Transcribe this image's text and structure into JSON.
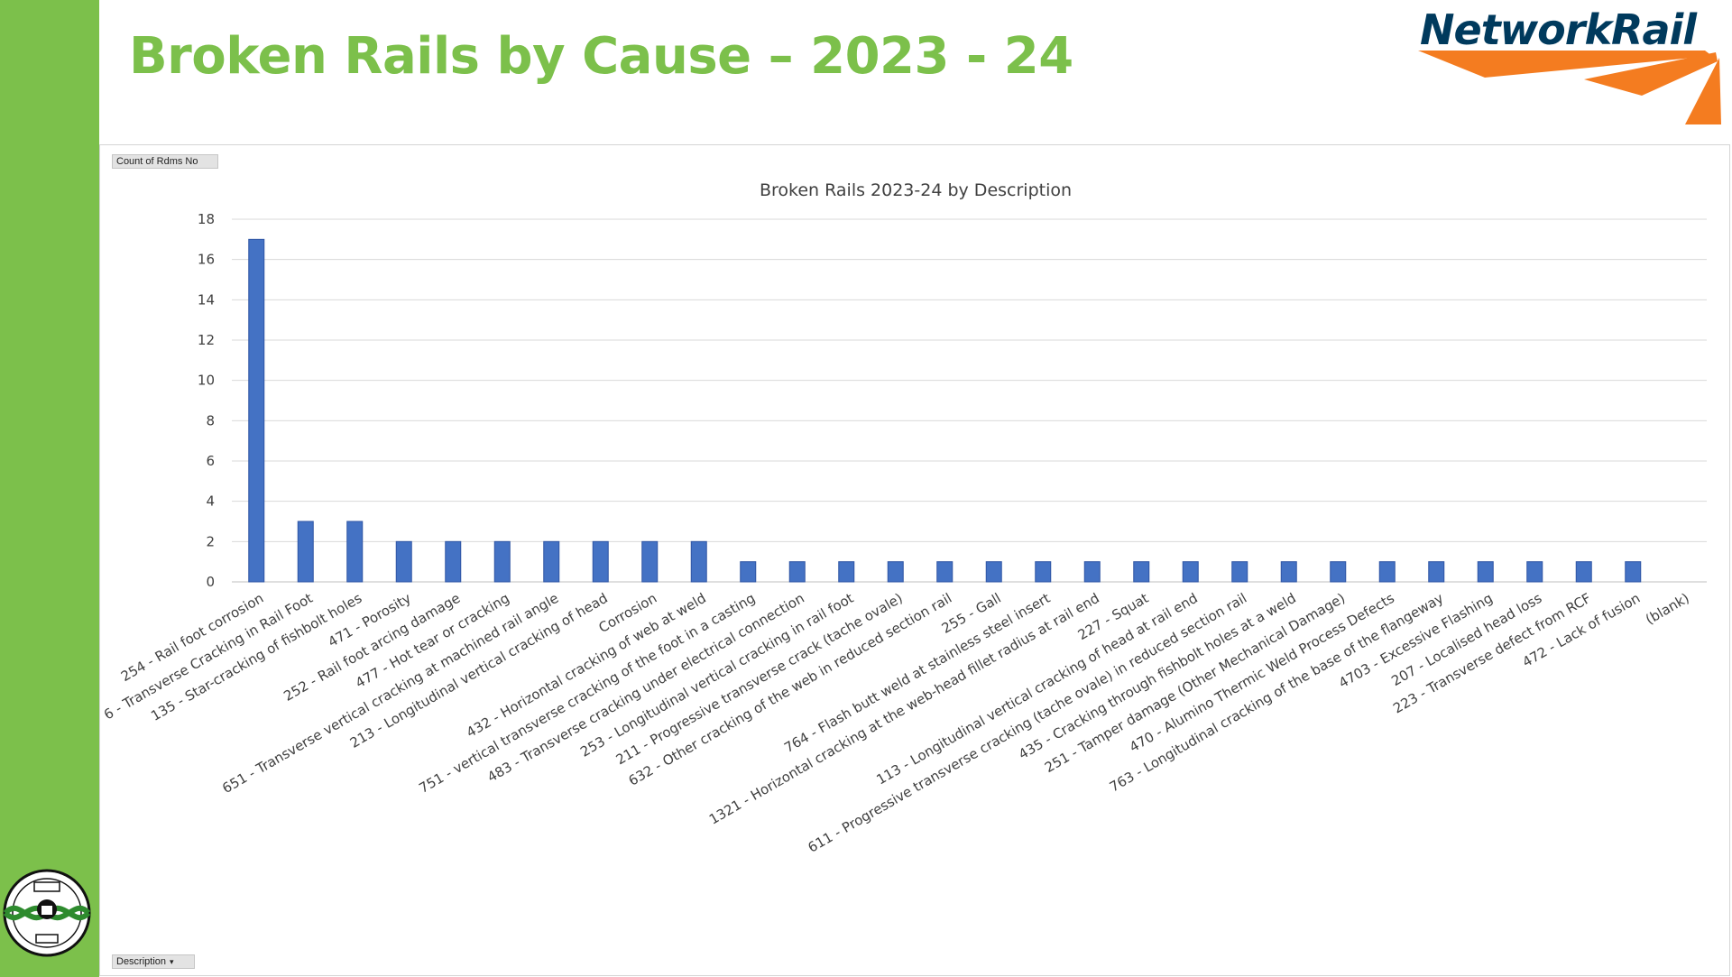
{
  "slide": {
    "title": "Broken Rails by Cause – 2023 - 24",
    "logo_text": "NetworkRail",
    "accent_color": "#7cc04b",
    "logo_navy": "#003a5d",
    "logo_orange": "#f47c20"
  },
  "pivot": {
    "value_field_label": "Count of Rdms No",
    "axis_field_label": "Description"
  },
  "chart_data": {
    "type": "bar",
    "title": "Broken Rails 2023-24 by Description",
    "xlabel": "",
    "ylabel": "",
    "ylim": [
      0,
      18
    ],
    "yticks": [
      0,
      2,
      4,
      6,
      8,
      10,
      12,
      14,
      16,
      18
    ],
    "grid": true,
    "legend": "none",
    "bar_color": "#4472c4",
    "categories": [
      "254 - Rail foot corrosion",
      "6 - Transverse Cracking in Rail Foot",
      "135 - Star-cracking of fishbolt holes",
      "471 - Porosity",
      "252 - Rail foot arcing damage",
      "477 - Hot tear or cracking",
      "651 - Transverse vertical cracking at machined rail angle",
      "213 - Longitudinal vertical cracking of head",
      "Corrosion",
      "432 - Horizontal cracking of web at weld",
      "751 - vertical transverse cracking of the foot in a casting",
      "483 - Transverse cracking under electrical connection",
      "253 - Longitudinal vertical cracking in rail foot",
      "211 - Progressive transverse crack (tache ovale)",
      "632 - Other cracking of the web in reduced section rail",
      "255 - Gall",
      "764 - Flash butt weld at stainless steel insert",
      "1321 - Horizontal cracking at the web-head fillet radius at rail end",
      "227 - Squat",
      "113 - Longitudinal vertical cracking of head at rail end",
      "611 - Progressive transverse cracking (tache ovale) in reduced section rail",
      "435 - Cracking through fishbolt holes at a weld",
      "251 - Tamper damage (Other Mechanical Damage)",
      "470 - Alumino Thermic Weld Process Defects",
      "763 - Longitudinal cracking of the base of the flangeway",
      "4703 - Excessive Flashing",
      "207 - Localised head loss",
      "223 - Transverse defect from RCF",
      "472 - Lack of fusion",
      "(blank)"
    ],
    "values": [
      17,
      3,
      3,
      2,
      2,
      2,
      2,
      2,
      2,
      2,
      1,
      1,
      1,
      1,
      1,
      1,
      1,
      1,
      1,
      1,
      1,
      1,
      1,
      1,
      1,
      1,
      1,
      1,
      1,
      0
    ]
  }
}
